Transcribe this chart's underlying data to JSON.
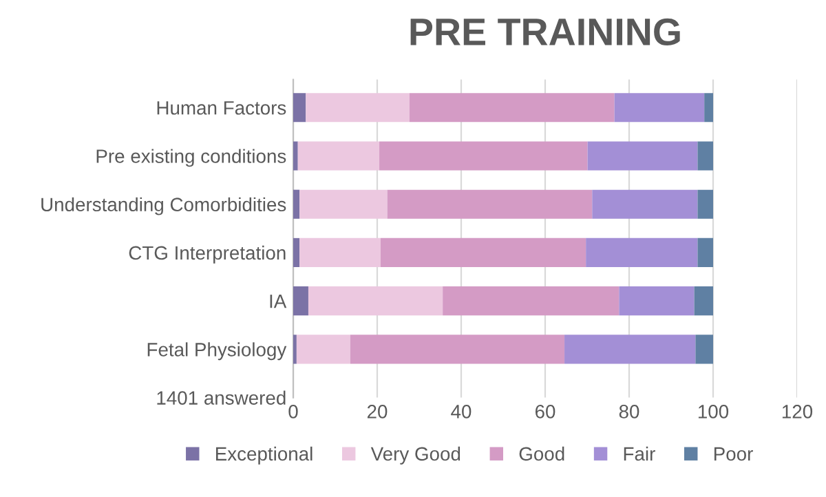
{
  "chart_data": {
    "type": "bar",
    "orientation": "horizontal",
    "stacked": true,
    "title": "PRE TRAINING",
    "categories": [
      "Human Factors",
      "Pre existing conditions",
      "Understanding Comorbidities",
      "CTG Interpretation",
      "IA",
      "Fetal Physiology",
      "1401 answered"
    ],
    "series": [
      {
        "name": "Exceptional",
        "color": "#7b72a6",
        "values": [
          3.0,
          1.1,
          1.5,
          1.5,
          3.6,
          0.8,
          null
        ]
      },
      {
        "name": "Very Good",
        "color": "#ecc8e0",
        "values": [
          24.7,
          19.4,
          20.9,
          19.3,
          32.0,
          12.8,
          null
        ]
      },
      {
        "name": "Good",
        "color": "#d49bc5",
        "values": [
          48.8,
          49.6,
          48.8,
          48.9,
          42.0,
          51.0,
          null
        ]
      },
      {
        "name": "Fair",
        "color": "#a38fd6",
        "values": [
          21.4,
          26.2,
          25.1,
          26.6,
          17.9,
          31.2,
          null
        ]
      },
      {
        "name": "Poor",
        "color": "#5f80a3",
        "values": [
          2.1,
          3.7,
          3.7,
          3.7,
          4.5,
          4.2,
          null
        ]
      }
    ],
    "xlim": [
      0,
      120
    ],
    "xticks": [
      0,
      20,
      40,
      60,
      80,
      100,
      120
    ],
    "grid": "x",
    "legend": "bottom"
  }
}
